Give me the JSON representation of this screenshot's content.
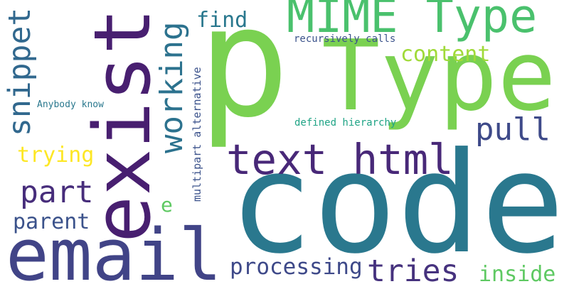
{
  "words": [
    "p",
    "Type",
    "code",
    "exist",
    "email",
    "text html",
    "MIME Type",
    "snippet",
    "working",
    "find",
    "recursively calls",
    "content",
    "pull",
    "Anybody know",
    "multipart alternative",
    "defined hierarchy",
    "trying",
    "part",
    "e",
    "parent",
    "processing",
    "tries",
    "inside"
  ]
}
